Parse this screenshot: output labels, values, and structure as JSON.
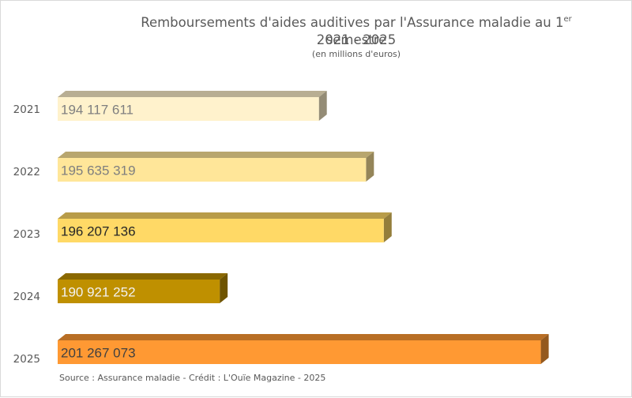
{
  "chart_data": {
    "type": "bar",
    "orientation": "horizontal",
    "title": "Remboursements d'aides auditives par l'Assurance maladie au 1",
    "title_superscript": "er",
    "title_suffix": " semestre",
    "subtitle": "2021 - 2025",
    "unit_label": "(en millions d'euros)",
    "categories": [
      "2021",
      "2022",
      "2023",
      "2024",
      "2025"
    ],
    "values": [
      194117611,
      195635319,
      196207136,
      190921252,
      201267073
    ],
    "value_labels": [
      "194 117 611",
      "195 635 319",
      "196 207 136",
      "190 921 252",
      "201 267 073"
    ],
    "colors": [
      "#fff2cc",
      "#ffe699",
      "#ffd966",
      "#bf9000",
      "#ff9933"
    ],
    "label_colors": [
      "#7f7f7f",
      "#7f7f7f",
      "#262626",
      "#f2f2f2",
      "#404040"
    ],
    "xlim": [
      185700000,
      202500000
    ],
    "grid": false,
    "legend": "none",
    "style": "3d-bar"
  },
  "source": "Source : Assurance maladie - Crédit : L'Ouïe Magazine - 2025"
}
